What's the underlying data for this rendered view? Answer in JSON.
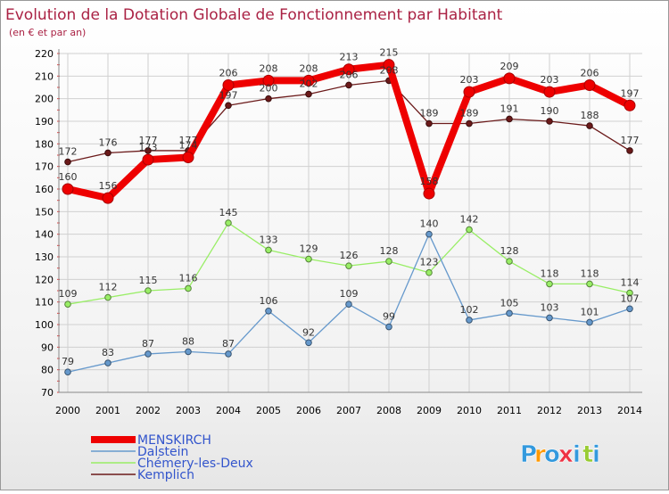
{
  "chart_data": {
    "type": "line",
    "title": "Evolution de la Dotation Globale de Fonctionnement par Habitant",
    "subtitle": "(en € et par an)",
    "xlabel": "",
    "ylabel": "",
    "ylim": [
      70,
      220
    ],
    "yticks": [
      70,
      80,
      90,
      100,
      110,
      120,
      130,
      140,
      150,
      160,
      170,
      180,
      190,
      200,
      210,
      220
    ],
    "x": [
      "2000",
      "2001",
      "2002",
      "2003",
      "2004",
      "2005",
      "2006",
      "2007",
      "2008",
      "2009",
      "2010",
      "2011",
      "2012",
      "2013",
      "2014"
    ],
    "series": [
      {
        "name": "Kemplich",
        "color": "#6b1a1a",
        "values": [
          172,
          176,
          177,
          177,
          197,
          200,
          202,
          206,
          208,
          189,
          189,
          191,
          190,
          188,
          177
        ]
      },
      {
        "name": "Chémery-les-Deux",
        "color": "#99ee66",
        "values": [
          109,
          112,
          115,
          116,
          145,
          133,
          129,
          126,
          128,
          123,
          142,
          128,
          118,
          118,
          114
        ]
      },
      {
        "name": "Dalstein",
        "color": "#6699cc",
        "values": [
          79,
          83,
          87,
          88,
          87,
          106,
          92,
          109,
          99,
          140,
          102,
          105,
          103,
          101,
          107
        ]
      },
      {
        "name": "MENSKIRCH",
        "color": "#ee0000",
        "values": [
          160,
          156,
          173,
          174,
          206,
          208,
          208,
          213,
          215,
          158,
          203,
          209,
          203,
          206,
          197
        ]
      }
    ],
    "legend": [
      "MENSKIRCH",
      "Dalstein",
      "Chémery-les-Deux",
      "Kemplich"
    ],
    "legend_position": "bottom-left",
    "grid": true
  },
  "logo": {
    "text": "Proxiti",
    "letters": [
      "P",
      "r",
      "o",
      "x",
      "i",
      "t",
      "i"
    ]
  },
  "colors": {
    "background": "#ffffff",
    "grid": "#cccccc",
    "title": "#aa2244",
    "axis_text": "#000000"
  }
}
